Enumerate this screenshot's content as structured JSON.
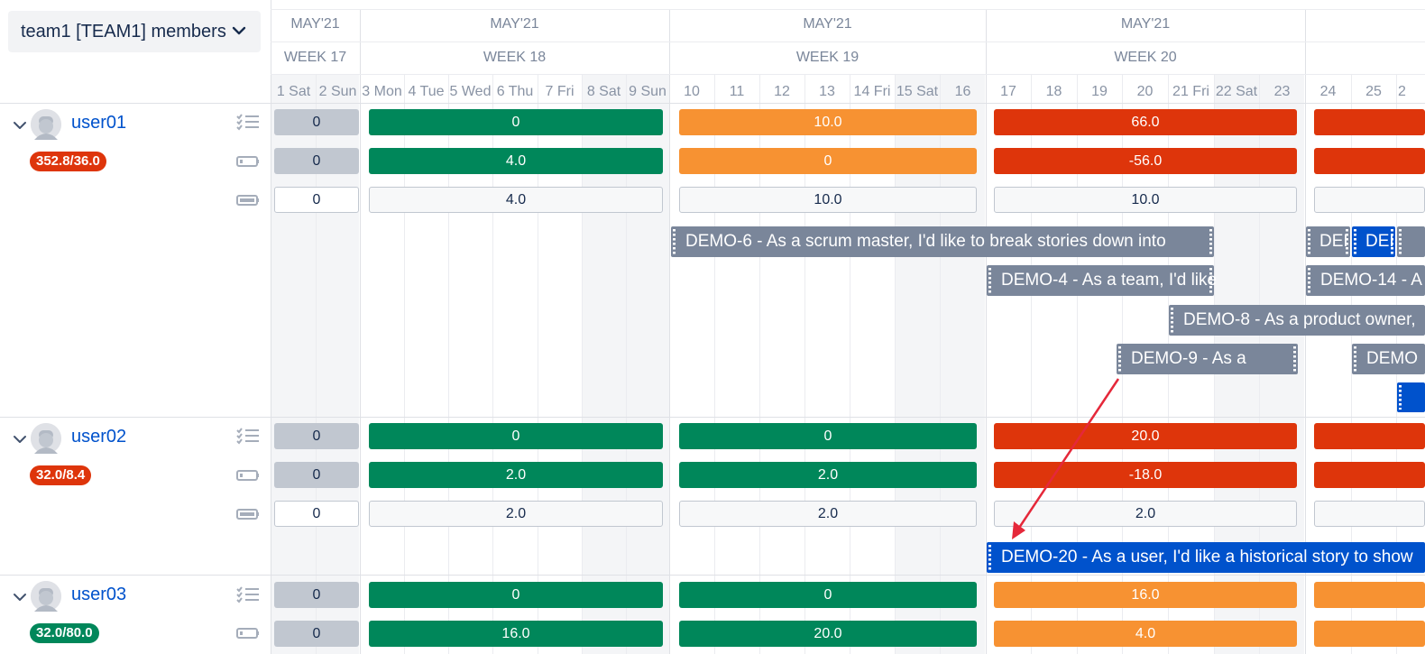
{
  "team_select": {
    "label": "team1 [TEAM1] members"
  },
  "months": [
    "MAY'21",
    "MAY'21",
    "MAY'21",
    "MAY'21"
  ],
  "weeks": [
    "WEEK 17",
    "WEEK 18",
    "WEEK 19",
    "WEEK 20"
  ],
  "days": [
    "1 Sat",
    "2 Sun",
    "3 Mon",
    "4 Tue",
    "5 Wed",
    "6 Thu",
    "7 Fri",
    "8 Sat",
    "9 Sun",
    "10",
    "11",
    "12",
    "13",
    "14 Fri",
    "15 Sat",
    "16",
    "17",
    "18",
    "19",
    "20",
    "21 Fri",
    "22 Sat",
    "23",
    "24",
    "25",
    "2"
  ],
  "users": [
    {
      "name": "user01",
      "badge": "352.8/36.0",
      "rows": [
        [
          "0",
          "0",
          "10.0",
          "66.0"
        ],
        [
          "0",
          "4.0",
          "0",
          "-56.0"
        ],
        [
          "0",
          "4.0",
          "10.0",
          "10.0"
        ]
      ]
    },
    {
      "name": "user02",
      "badge": "32.0/8.4",
      "rows": [
        [
          "0",
          "0",
          "0",
          "20.0"
        ],
        [
          "0",
          "2.0",
          "2.0",
          "-18.0"
        ],
        [
          "0",
          "2.0",
          "2.0",
          "2.0"
        ]
      ]
    },
    {
      "name": "user03",
      "badge": "32.0/80.0",
      "rows": [
        [
          "0",
          "0",
          "0",
          "16.0"
        ],
        [
          "0",
          "16.0",
          "20.0",
          "4.0"
        ]
      ]
    }
  ],
  "issues": {
    "demo6": "DEMO-6 - As a scrum master, I'd like to break stories down into",
    "demo4": "DEMO-4 - As a team, I'd like",
    "demo8": "DEMO-8 - As a product owner,",
    "demo9": "DEMO-9 - As a",
    "demo20": "DEMO-20 - As a user, I'd like a historical story to show",
    "demo14": "DEMO-14 - A",
    "dem_a": "DEI",
    "dem_b": "DEI",
    "demo_c": "DEMO"
  },
  "colors": {
    "green": "#00875a",
    "orange": "#f79232",
    "red": "#de350b",
    "gray": "#c1c7d0",
    "issue_gray": "#7a869a",
    "issue_blue": "#0052cc",
    "link_blue": "#0052cc"
  }
}
